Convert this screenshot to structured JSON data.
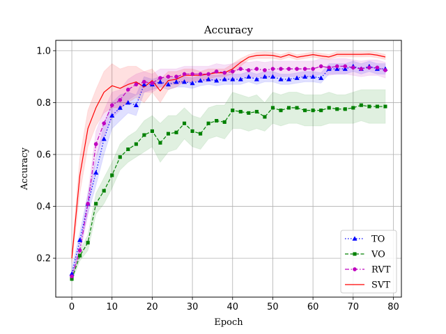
{
  "chart_data": {
    "type": "line",
    "title": "Accuracy",
    "xlabel": "Epoch",
    "ylabel": "Accuracy",
    "xlim": [
      -4,
      82
    ],
    "ylim": [
      0.05,
      1.04
    ],
    "xticks": [
      0,
      10,
      20,
      30,
      40,
      50,
      60,
      70,
      80
    ],
    "yticks": [
      0.2,
      0.4,
      0.6,
      0.8,
      1.0
    ],
    "xtick_labels": [
      "0",
      "10",
      "20",
      "30",
      "40",
      "50",
      "60",
      "70",
      "80"
    ],
    "ytick_labels": [
      "0.2",
      "0.4",
      "0.6",
      "0.8",
      "1.0"
    ],
    "grid": true,
    "legend_position": "lower-right",
    "series": [
      {
        "name": "TO",
        "color": "#0000ff",
        "linestyle": "dotted",
        "marker": "triangle",
        "x": [
          0,
          2,
          4,
          6,
          8,
          10,
          12,
          14,
          16,
          18,
          20,
          22,
          24,
          26,
          28,
          30,
          32,
          34,
          36,
          38,
          40,
          42,
          44,
          46,
          48,
          50,
          52,
          54,
          56,
          58,
          60,
          62,
          64,
          66,
          68,
          70,
          72,
          74,
          76,
          78
        ],
        "values": [
          0.14,
          0.27,
          0.41,
          0.53,
          0.66,
          0.75,
          0.78,
          0.8,
          0.79,
          0.87,
          0.87,
          0.88,
          0.87,
          0.88,
          0.88,
          0.875,
          0.885,
          0.89,
          0.885,
          0.89,
          0.89,
          0.89,
          0.9,
          0.89,
          0.9,
          0.9,
          0.89,
          0.89,
          0.895,
          0.9,
          0.9,
          0.895,
          0.93,
          0.93,
          0.93,
          0.94,
          0.93,
          0.94,
          0.93,
          0.93
        ],
        "band_lower": [
          0.12,
          0.24,
          0.37,
          0.48,
          0.6,
          0.7,
          0.73,
          0.76,
          0.75,
          0.84,
          0.85,
          0.86,
          0.85,
          0.86,
          0.86,
          0.855,
          0.865,
          0.87,
          0.865,
          0.87,
          0.87,
          0.87,
          0.88,
          0.87,
          0.88,
          0.88,
          0.87,
          0.87,
          0.875,
          0.88,
          0.88,
          0.875,
          0.91,
          0.91,
          0.91,
          0.92,
          0.91,
          0.92,
          0.91,
          0.91
        ],
        "band_upper": [
          0.16,
          0.3,
          0.45,
          0.58,
          0.72,
          0.8,
          0.83,
          0.84,
          0.83,
          0.9,
          0.89,
          0.9,
          0.89,
          0.9,
          0.9,
          0.895,
          0.905,
          0.91,
          0.905,
          0.91,
          0.91,
          0.91,
          0.92,
          0.91,
          0.92,
          0.92,
          0.91,
          0.91,
          0.915,
          0.92,
          0.92,
          0.915,
          0.95,
          0.95,
          0.95,
          0.96,
          0.95,
          0.96,
          0.95,
          0.95
        ]
      },
      {
        "name": "VO",
        "color": "#008000",
        "linestyle": "dashed",
        "marker": "square",
        "x": [
          0,
          2,
          4,
          6,
          8,
          10,
          12,
          14,
          16,
          18,
          20,
          22,
          24,
          26,
          28,
          30,
          32,
          34,
          36,
          38,
          40,
          42,
          44,
          46,
          48,
          50,
          52,
          54,
          56,
          58,
          60,
          62,
          64,
          66,
          68,
          70,
          72,
          74,
          76,
          78
        ],
        "values": [
          0.12,
          0.21,
          0.26,
          0.41,
          0.46,
          0.52,
          0.59,
          0.62,
          0.64,
          0.675,
          0.69,
          0.645,
          0.68,
          0.685,
          0.72,
          0.69,
          0.68,
          0.72,
          0.73,
          0.725,
          0.77,
          0.765,
          0.76,
          0.765,
          0.745,
          0.78,
          0.77,
          0.78,
          0.78,
          0.77,
          0.77,
          0.77,
          0.78,
          0.775,
          0.775,
          0.78,
          0.79,
          0.785,
          0.785,
          0.785
        ],
        "band_lower": [
          0.11,
          0.19,
          0.23,
          0.37,
          0.41,
          0.47,
          0.54,
          0.57,
          0.59,
          0.61,
          0.63,
          0.57,
          0.61,
          0.62,
          0.66,
          0.63,
          0.62,
          0.66,
          0.67,
          0.66,
          0.7,
          0.7,
          0.69,
          0.7,
          0.69,
          0.72,
          0.71,
          0.72,
          0.72,
          0.71,
          0.71,
          0.71,
          0.72,
          0.72,
          0.72,
          0.72,
          0.73,
          0.72,
          0.72,
          0.72
        ],
        "band_upper": [
          0.13,
          0.23,
          0.29,
          0.45,
          0.51,
          0.57,
          0.64,
          0.67,
          0.69,
          0.73,
          0.75,
          0.72,
          0.75,
          0.75,
          0.78,
          0.75,
          0.74,
          0.78,
          0.79,
          0.79,
          0.84,
          0.83,
          0.82,
          0.83,
          0.8,
          0.84,
          0.83,
          0.84,
          0.84,
          0.83,
          0.83,
          0.83,
          0.84,
          0.83,
          0.83,
          0.84,
          0.85,
          0.85,
          0.85,
          0.85
        ]
      },
      {
        "name": "RVT",
        "color": "#bf00bf",
        "linestyle": "dashdot",
        "marker": "circle",
        "x": [
          0,
          2,
          4,
          6,
          8,
          10,
          12,
          14,
          16,
          18,
          20,
          22,
          24,
          26,
          28,
          30,
          32,
          34,
          36,
          38,
          40,
          42,
          44,
          46,
          48,
          50,
          52,
          54,
          56,
          58,
          60,
          62,
          64,
          66,
          68,
          70,
          72,
          74,
          76,
          78
        ],
        "values": [
          0.13,
          0.23,
          0.41,
          0.64,
          0.72,
          0.79,
          0.81,
          0.85,
          0.87,
          0.88,
          0.875,
          0.895,
          0.9,
          0.9,
          0.91,
          0.91,
          0.91,
          0.91,
          0.92,
          0.915,
          0.92,
          0.93,
          0.925,
          0.93,
          0.925,
          0.93,
          0.93,
          0.93,
          0.93,
          0.93,
          0.93,
          0.94,
          0.935,
          0.94,
          0.94,
          0.935,
          0.93,
          0.935,
          0.935,
          0.925
        ],
        "band_lower": [
          0.12,
          0.21,
          0.37,
          0.59,
          0.67,
          0.74,
          0.77,
          0.81,
          0.83,
          0.84,
          0.84,
          0.86,
          0.87,
          0.87,
          0.88,
          0.88,
          0.88,
          0.88,
          0.89,
          0.885,
          0.89,
          0.9,
          0.895,
          0.9,
          0.895,
          0.9,
          0.9,
          0.9,
          0.9,
          0.9,
          0.9,
          0.91,
          0.905,
          0.91,
          0.91,
          0.905,
          0.9,
          0.905,
          0.905,
          0.895
        ],
        "band_upper": [
          0.14,
          0.25,
          0.45,
          0.69,
          0.77,
          0.84,
          0.85,
          0.89,
          0.91,
          0.92,
          0.91,
          0.93,
          0.93,
          0.93,
          0.94,
          0.94,
          0.94,
          0.94,
          0.95,
          0.945,
          0.95,
          0.96,
          0.955,
          0.96,
          0.955,
          0.96,
          0.96,
          0.96,
          0.96,
          0.96,
          0.96,
          0.97,
          0.965,
          0.97,
          0.97,
          0.965,
          0.96,
          0.965,
          0.965,
          0.955
        ]
      },
      {
        "name": "SVT",
        "color": "#ff0000",
        "linestyle": "solid",
        "marker": "none",
        "x": [
          0,
          2,
          4,
          6,
          8,
          10,
          12,
          14,
          16,
          18,
          20,
          22,
          24,
          26,
          28,
          30,
          32,
          34,
          36,
          38,
          40,
          42,
          44,
          46,
          48,
          50,
          52,
          54,
          56,
          58,
          60,
          62,
          64,
          66,
          68,
          70,
          72,
          74,
          76,
          78
        ],
        "values": [
          0.2,
          0.52,
          0.7,
          0.78,
          0.84,
          0.865,
          0.855,
          0.87,
          0.88,
          0.86,
          0.885,
          0.845,
          0.885,
          0.89,
          0.905,
          0.905,
          0.905,
          0.91,
          0.915,
          0.915,
          0.93,
          0.955,
          0.975,
          0.982,
          0.983,
          0.982,
          0.975,
          0.985,
          0.975,
          0.98,
          0.985,
          0.98,
          0.976,
          0.986,
          0.986,
          0.986,
          0.986,
          0.987,
          0.983,
          0.976
        ],
        "band_lower": [
          0.18,
          0.45,
          0.63,
          0.71,
          0.76,
          0.78,
          0.78,
          0.8,
          0.82,
          0.8,
          0.84,
          0.8,
          0.85,
          0.86,
          0.88,
          0.88,
          0.89,
          0.89,
          0.9,
          0.9,
          0.91,
          0.94,
          0.965,
          0.97,
          0.97,
          0.97,
          0.965,
          0.975,
          0.965,
          0.97,
          0.975,
          0.97,
          0.966,
          0.976,
          0.976,
          0.976,
          0.976,
          0.977,
          0.973,
          0.966
        ],
        "band_upper": [
          0.22,
          0.59,
          0.77,
          0.85,
          0.92,
          0.95,
          0.93,
          0.94,
          0.94,
          0.92,
          0.93,
          0.89,
          0.92,
          0.92,
          0.93,
          0.93,
          0.92,
          0.93,
          0.93,
          0.93,
          0.95,
          0.97,
          0.985,
          0.994,
          0.996,
          0.994,
          0.985,
          0.995,
          0.985,
          0.99,
          0.995,
          0.99,
          0.986,
          0.996,
          0.996,
          0.996,
          0.996,
          0.997,
          0.993,
          0.986
        ]
      }
    ]
  }
}
